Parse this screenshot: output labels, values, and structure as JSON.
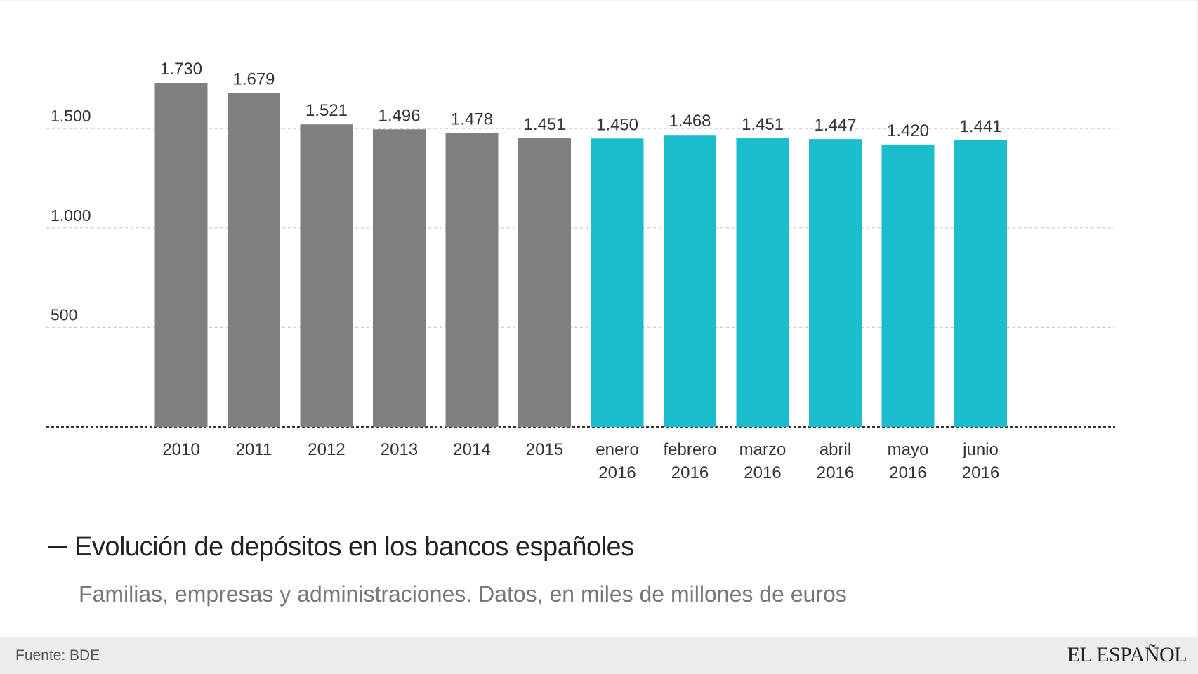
{
  "chart_data": {
    "type": "bar",
    "title": "Evolución de depósitos en los bancos españoles",
    "subtitle": "Familias, empresas y administraciones. Datos, en miles de millones de euros",
    "categories": [
      [
        "2010"
      ],
      [
        "2011"
      ],
      [
        "2012"
      ],
      [
        "2013"
      ],
      [
        "2014"
      ],
      [
        "2015"
      ],
      [
        "enero",
        "2016"
      ],
      [
        "febrero",
        "2016"
      ],
      [
        "marzo",
        "2016"
      ],
      [
        "abril",
        "2016"
      ],
      [
        "mayo",
        "2016"
      ],
      [
        "junio",
        "2016"
      ]
    ],
    "values": [
      1730,
      1679,
      1521,
      1496,
      1478,
      1451,
      1450,
      1468,
      1451,
      1447,
      1420,
      1441
    ],
    "value_labels": [
      "1.730",
      "1.679",
      "1.521",
      "1.496",
      "1.478",
      "1.451",
      "1.450",
      "1.468",
      "1.451",
      "1.447",
      "1.420",
      "1.441"
    ],
    "yticks": [
      {
        "value": 500,
        "label": "500"
      },
      {
        "value": 1000,
        "label": "1.000"
      },
      {
        "value": 1500,
        "label": "1.500"
      }
    ],
    "ylim": [
      0,
      1730
    ],
    "grid": true,
    "colors": {
      "annual": "#7f7f7f",
      "monthly": "#1bbccc"
    },
    "color_groups": [
      "annual",
      "annual",
      "annual",
      "annual",
      "annual",
      "annual",
      "monthly",
      "monthly",
      "monthly",
      "monthly",
      "monthly",
      "monthly"
    ]
  },
  "footer": {
    "source": "Fuente: BDE",
    "brand": "EL ESPAÑOL"
  }
}
